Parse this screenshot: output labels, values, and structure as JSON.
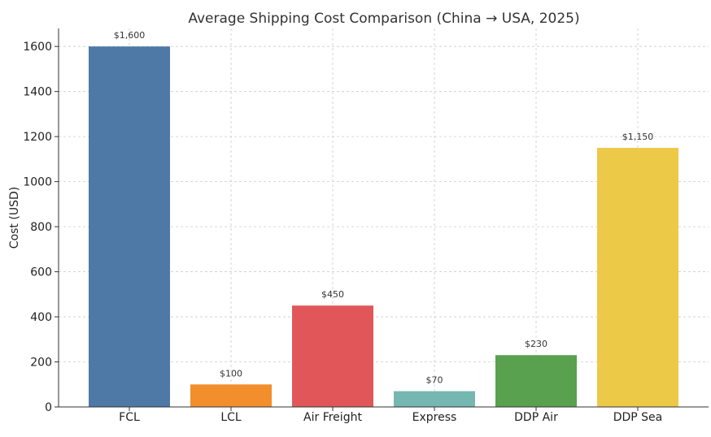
{
  "chart_data": {
    "type": "bar",
    "title": "Average Shipping Cost Comparison (China → USA, 2025)",
    "xlabel": "",
    "ylabel": "Cost (USD)",
    "categories": [
      "FCL",
      "LCL",
      "Air Freight",
      "Express",
      "DDP Air",
      "DDP Sea"
    ],
    "values": [
      1600,
      100,
      450,
      70,
      230,
      1150
    ],
    "data_labels": [
      "$1,600",
      "$100",
      "$450",
      "$70",
      "$230",
      "$1,150"
    ],
    "colors": [
      "#4e79a7",
      "#f28e2b",
      "#e15759",
      "#76b7b2",
      "#59a14f",
      "#edc948"
    ],
    "ylim": [
      0,
      1680
    ],
    "yticks": [
      0,
      200,
      400,
      600,
      800,
      1000,
      1200,
      1400,
      1600
    ],
    "grid": true,
    "legend": "none"
  }
}
